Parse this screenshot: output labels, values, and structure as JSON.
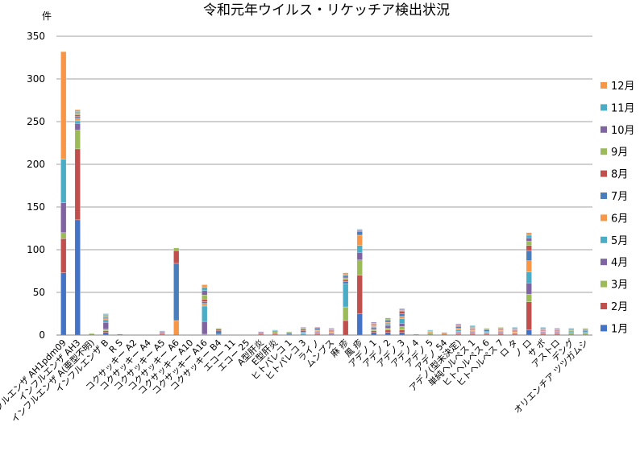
{
  "chart_data": {
    "type": "bar",
    "stacked": true,
    "title": "令和元年ウイルス・リケッチア検出状況",
    "ylabel": "件",
    "xlabel": "",
    "ylim": [
      0,
      350
    ],
    "yticks": [
      "0",
      "50",
      "100",
      "150",
      "200",
      "250",
      "300",
      "350"
    ],
    "grid": true,
    "legend_position": "right",
    "categories": [
      "インフルエンザ AH1pdm09",
      "インフルエンザ AH3",
      "インフルエンザ A(亜型不明)",
      "インフルエンザ B",
      "R S",
      "コクサッキー A2",
      "コクサッキー A4",
      "コクサッキー A5",
      "コクサッキー A6",
      "コクサッキー A10",
      "コクサッキー A16",
      "コクサッキー B4",
      "エコー 11",
      "エコー 25",
      "A型肝炎",
      "E型肝炎",
      "ヒトパレコ 1",
      "ヒトパレコ 3",
      "ライノ",
      "ムンプス",
      "麻 疹",
      "風 疹",
      "アデノ 1",
      "アデノ 2",
      "アデノ 3",
      "アデノ 4",
      "アデノ 5",
      "アデノ 54",
      "アデノ(型未決定)",
      "単純ヘルペス 1",
      "ヒトヘルペス 6",
      "ヒトヘルペス 7",
      "ロ タ",
      "ノ ロ",
      "サ ポ",
      "アストロ",
      "デング",
      "オリエンチア ツツガムシ"
    ],
    "series": [
      {
        "name": "1月",
        "color": "#4472C4",
        "values": [
          73,
          135,
          0,
          3,
          0,
          0,
          0,
          0,
          0,
          0,
          0,
          0,
          0,
          0,
          0,
          0,
          0,
          0,
          1,
          0,
          0,
          25,
          3,
          3,
          3,
          0,
          0,
          0,
          1,
          1,
          1,
          1,
          1,
          6,
          1,
          1,
          0,
          0
        ]
      },
      {
        "name": "2月",
        "color": "#C0504D",
        "values": [
          40,
          83,
          1,
          2,
          0,
          0,
          0,
          0,
          0,
          0,
          0,
          0,
          0,
          0,
          0,
          0,
          0,
          0,
          1,
          1,
          17,
          45,
          2,
          3,
          3,
          0,
          1,
          1,
          1,
          1,
          1,
          1,
          1,
          33,
          1,
          1,
          1,
          1
        ]
      },
      {
        "name": "3月",
        "color": "#9BBB59",
        "values": [
          7,
          22,
          1,
          2,
          0,
          0,
          0,
          0,
          0,
          0,
          1,
          0,
          0,
          0,
          0,
          0,
          0,
          0,
          1,
          0,
          16,
          18,
          2,
          2,
          4,
          0,
          1,
          0,
          1,
          1,
          1,
          1,
          1,
          9,
          1,
          1,
          1,
          1
        ]
      },
      {
        "name": "4月",
        "color": "#8064A2",
        "values": [
          35,
          8,
          0,
          8,
          0,
          0,
          0,
          0,
          0,
          0,
          15,
          0,
          0,
          0,
          0,
          0,
          1,
          1,
          1,
          1,
          0,
          9,
          2,
          3,
          4,
          0,
          1,
          0,
          1,
          1,
          0,
          1,
          0,
          13,
          1,
          1,
          1,
          1
        ]
      },
      {
        "name": "5月",
        "color": "#4BACC6",
        "values": [
          51,
          3,
          0,
          3,
          0,
          0,
          0,
          0,
          0,
          0,
          18,
          1,
          0,
          0,
          0,
          0,
          0,
          1,
          1,
          1,
          27,
          8,
          1,
          2,
          5,
          0,
          0,
          0,
          2,
          1,
          1,
          1,
          0,
          13,
          0,
          1,
          1,
          2
        ]
      },
      {
        "name": "6月",
        "color": "#F79646",
        "values": [
          126,
          3,
          0,
          2,
          0,
          0,
          0,
          0,
          17,
          0,
          3,
          0,
          0,
          0,
          0,
          0,
          0,
          1,
          1,
          1,
          0,
          12,
          1,
          2,
          3,
          0,
          1,
          1,
          2,
          1,
          0,
          1,
          1,
          13,
          1,
          0,
          0,
          0
        ]
      },
      {
        "name": "7月",
        "color": "#4A7EBB",
        "values": [
          0,
          2,
          0,
          1,
          0,
          0,
          0,
          1,
          67,
          0,
          2,
          4,
          0,
          0,
          1,
          1,
          1,
          2,
          2,
          1,
          3,
          4,
          1,
          2,
          3,
          0,
          0,
          0,
          2,
          1,
          2,
          1,
          1,
          12,
          0,
          0,
          0,
          1
        ]
      },
      {
        "name": "8月",
        "color": "#C0504D",
        "values": [
          0,
          2,
          0,
          1,
          0,
          0,
          0,
          1,
          15,
          0,
          3,
          2,
          0,
          0,
          1,
          1,
          1,
          2,
          1,
          1,
          2,
          1,
          1,
          1,
          3,
          0,
          0,
          0,
          1,
          1,
          1,
          1,
          1,
          6,
          1,
          1,
          1,
          1
        ]
      },
      {
        "name": "9月",
        "color": "#9BBB59",
        "values": [
          0,
          2,
          0,
          1,
          0,
          0,
          0,
          1,
          3,
          0,
          5,
          1,
          0,
          0,
          1,
          2,
          1,
          1,
          0,
          1,
          2,
          0,
          1,
          1,
          1,
          0,
          1,
          0,
          1,
          1,
          1,
          1,
          1,
          5,
          1,
          1,
          1,
          1
        ]
      },
      {
        "name": "10月",
        "color": "#8064A2",
        "values": [
          0,
          1,
          0,
          1,
          1,
          0,
          0,
          1,
          0,
          0,
          5,
          0,
          0,
          0,
          1,
          1,
          0,
          1,
          0,
          1,
          2,
          1,
          1,
          1,
          1,
          0,
          0,
          1,
          1,
          1,
          0,
          0,
          1,
          4,
          1,
          1,
          1,
          0
        ]
      },
      {
        "name": "11月",
        "color": "#4BACC6",
        "values": [
          0,
          1,
          0,
          1,
          0,
          0,
          0,
          1,
          0,
          0,
          4,
          0,
          0,
          0,
          0,
          1,
          0,
          0,
          0,
          0,
          2,
          1,
          0,
          0,
          1,
          1,
          1,
          0,
          0,
          1,
          0,
          0,
          1,
          3,
          1,
          0,
          1,
          0
        ]
      },
      {
        "name": "12月",
        "color": "#F79646",
        "values": [
          0,
          2,
          0,
          0,
          0,
          0,
          0,
          0,
          0,
          0,
          3,
          0,
          0,
          0,
          0,
          0,
          0,
          0,
          0,
          0,
          2,
          0,
          0,
          0,
          0,
          0,
          0,
          0,
          0,
          0,
          0,
          0,
          0,
          3,
          0,
          0,
          0,
          0
        ]
      }
    ]
  }
}
